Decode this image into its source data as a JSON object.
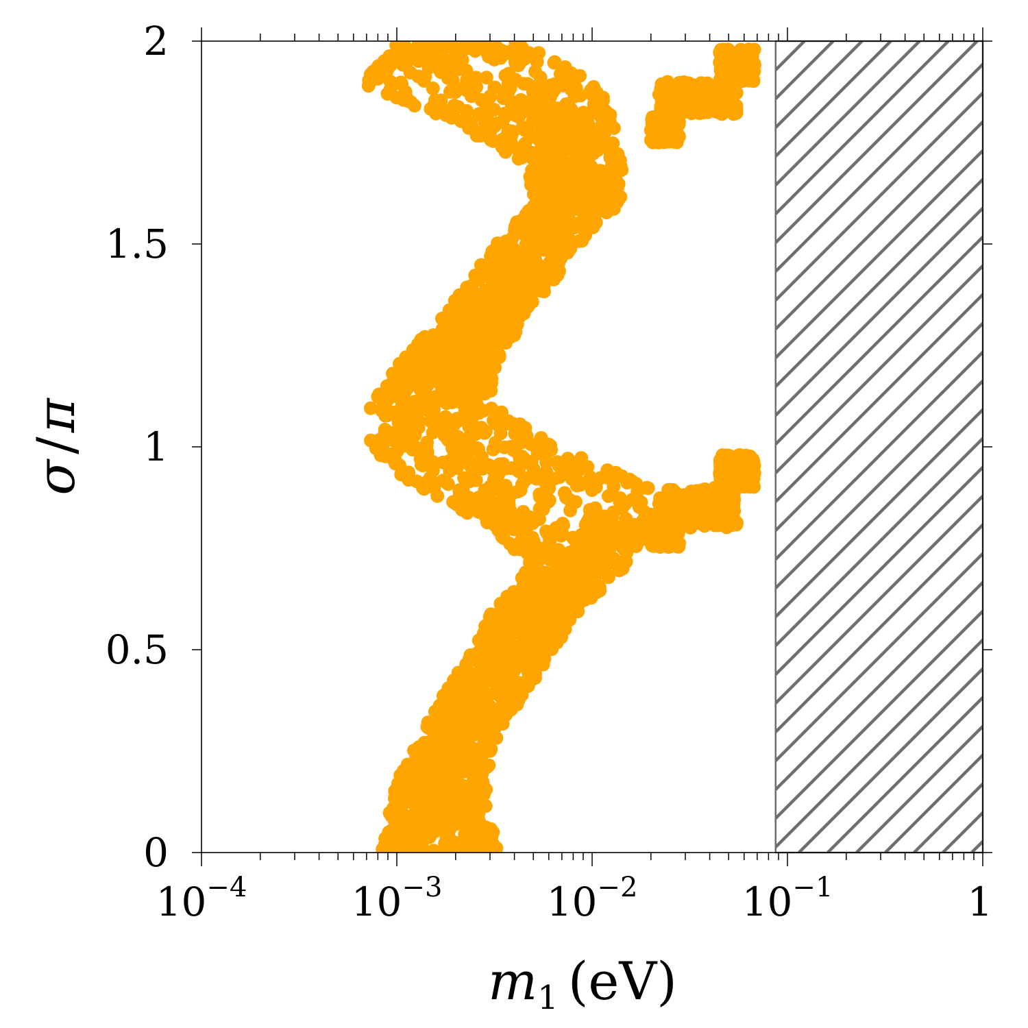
{
  "chart_data": {
    "type": "scatter",
    "x_scale": "log",
    "xlim": [
      0.0001,
      1
    ],
    "ylim": [
      0,
      2
    ],
    "xlabel": {
      "main": "m",
      "sub": "1",
      "unit": "(eV)"
    },
    "ylabel": {
      "numerator": "σ",
      "slash": "/",
      "denominator": "π"
    },
    "x_ticks": [
      {
        "value": 0.0001,
        "base": "10",
        "exp": "−4",
        "text": ""
      },
      {
        "value": 0.001,
        "base": "10",
        "exp": "−3",
        "text": ""
      },
      {
        "value": 0.01,
        "base": "10",
        "exp": "−2",
        "text": ""
      },
      {
        "value": 0.1,
        "base": "10",
        "exp": "−1",
        "text": ""
      },
      {
        "value": 1,
        "base": "",
        "exp": "",
        "text": "1"
      }
    ],
    "y_ticks": [
      {
        "value": 0,
        "text": "0"
      },
      {
        "value": 0.5,
        "text": "0.5"
      },
      {
        "value": 1,
        "text": "1"
      },
      {
        "value": 1.5,
        "text": "1.5"
      },
      {
        "value": 2,
        "text": "2"
      }
    ],
    "grid": false,
    "series": [
      {
        "color": "#ffa500",
        "region_center": [
          [
            0.0017,
            0.0
          ],
          [
            0.0016,
            0.1
          ],
          [
            0.00175,
            0.2
          ],
          [
            0.0021,
            0.3
          ],
          [
            0.0029,
            0.4
          ],
          [
            0.0039,
            0.5
          ],
          [
            0.0052,
            0.6
          ],
          [
            0.0082,
            0.7
          ],
          [
            0.008,
            0.8
          ],
          [
            0.005,
            0.9
          ],
          [
            0.0022,
            1.0
          ],
          [
            0.0015,
            1.1
          ],
          [
            0.0018,
            1.2
          ],
          [
            0.0026,
            1.3
          ],
          [
            0.0038,
            1.4
          ],
          [
            0.0052,
            1.5
          ],
          [
            0.0085,
            1.6
          ],
          [
            0.008,
            1.7
          ],
          [
            0.005,
            1.8
          ],
          [
            0.0026,
            1.9
          ],
          [
            0.002,
            2.0
          ]
        ],
        "region_width_decades": [
          0.62,
          0.5,
          0.44,
          0.4,
          0.42,
          0.42,
          0.44,
          0.5,
          0.82,
          1.2,
          0.98,
          0.62,
          0.5,
          0.45,
          0.43,
          0.43,
          0.44,
          0.5,
          0.82,
          1.22,
          0.62
        ],
        "lobe_band": [
          [
            0.75,
            0.82,
            0.02,
            0.028
          ],
          [
            0.8,
            0.9,
            0.022,
            0.055
          ],
          [
            0.9,
            0.98,
            0.045,
            0.068
          ],
          [
            1.75,
            1.82,
            0.02,
            0.028
          ],
          [
            1.82,
            1.9,
            0.022,
            0.055
          ],
          [
            1.9,
            1.98,
            0.045,
            0.068
          ]
        ],
        "point_count": 2600
      }
    ],
    "excluded_region": {
      "x_range": [
        0.087,
        1
      ],
      "y_range": [
        0,
        2
      ],
      "fill": "hatched",
      "color": "#6e6e6e"
    }
  }
}
